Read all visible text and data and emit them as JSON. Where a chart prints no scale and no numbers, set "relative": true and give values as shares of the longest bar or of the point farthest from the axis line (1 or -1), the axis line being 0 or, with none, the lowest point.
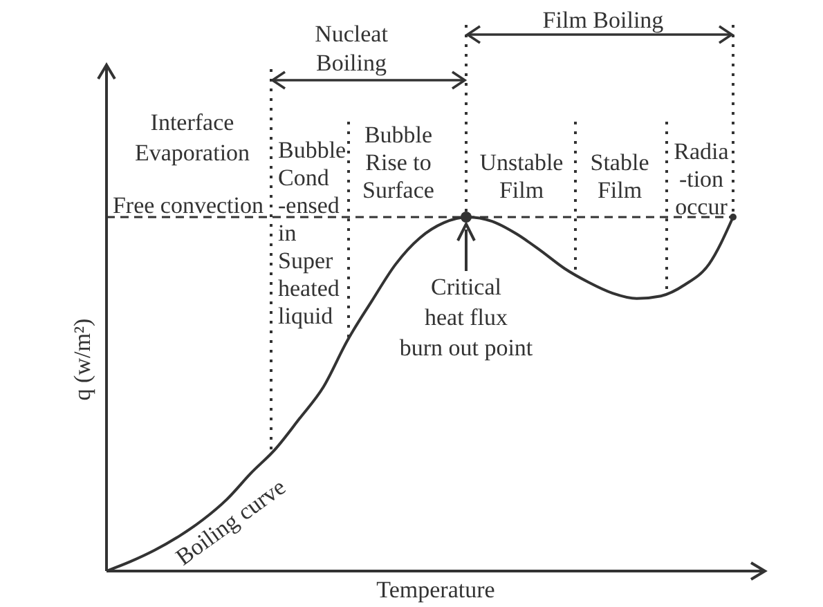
{
  "chart_data": {
    "type": "line",
    "relative": true,
    "xlabel": "Temperature",
    "ylabel": "q (w/m²)",
    "categories": [
      null,
      null,
      null,
      null,
      null,
      null,
      null,
      null,
      null,
      null,
      null,
      null,
      null,
      null,
      null,
      null,
      null,
      null,
      null,
      null,
      null,
      null,
      null,
      null,
      null,
      null,
      null
    ],
    "series": [
      {
        "name": "Boiling curve",
        "color": "#333333",
        "values": [
          0,
          0.027,
          0.059,
          0.098,
          0.145,
          0.203,
          0.277,
          0.344,
          0.43,
          0.52,
          0.652,
          0.762,
          0.867,
          0.941,
          0.984,
          1,
          0.988,
          0.953,
          0.906,
          0.855,
          0.816,
          0.785,
          0.77,
          0.777,
          0.809,
          0.867,
          1
        ]
      }
    ],
    "ref_lines": [
      {
        "axis": "y",
        "value": 1,
        "line_style": "dashed",
        "color": "#333333"
      }
    ],
    "annotations": [
      "Nucleat\nBoiling",
      "Film Boiling",
      "Interface\nEvaporation",
      "Free convection",
      "Bubble\nCond\n-ensed\nin\nSuper\nheated\nliquid",
      "Bubble\nRise to\nSurface",
      "Unstable\nFilm",
      "Stable\nFilm",
      "Radia\n-tion\noccur",
      "Critical\nheat flux\nburn out point"
    ],
    "legend": false,
    "marker": "none",
    "line_style": "solid"
  }
}
